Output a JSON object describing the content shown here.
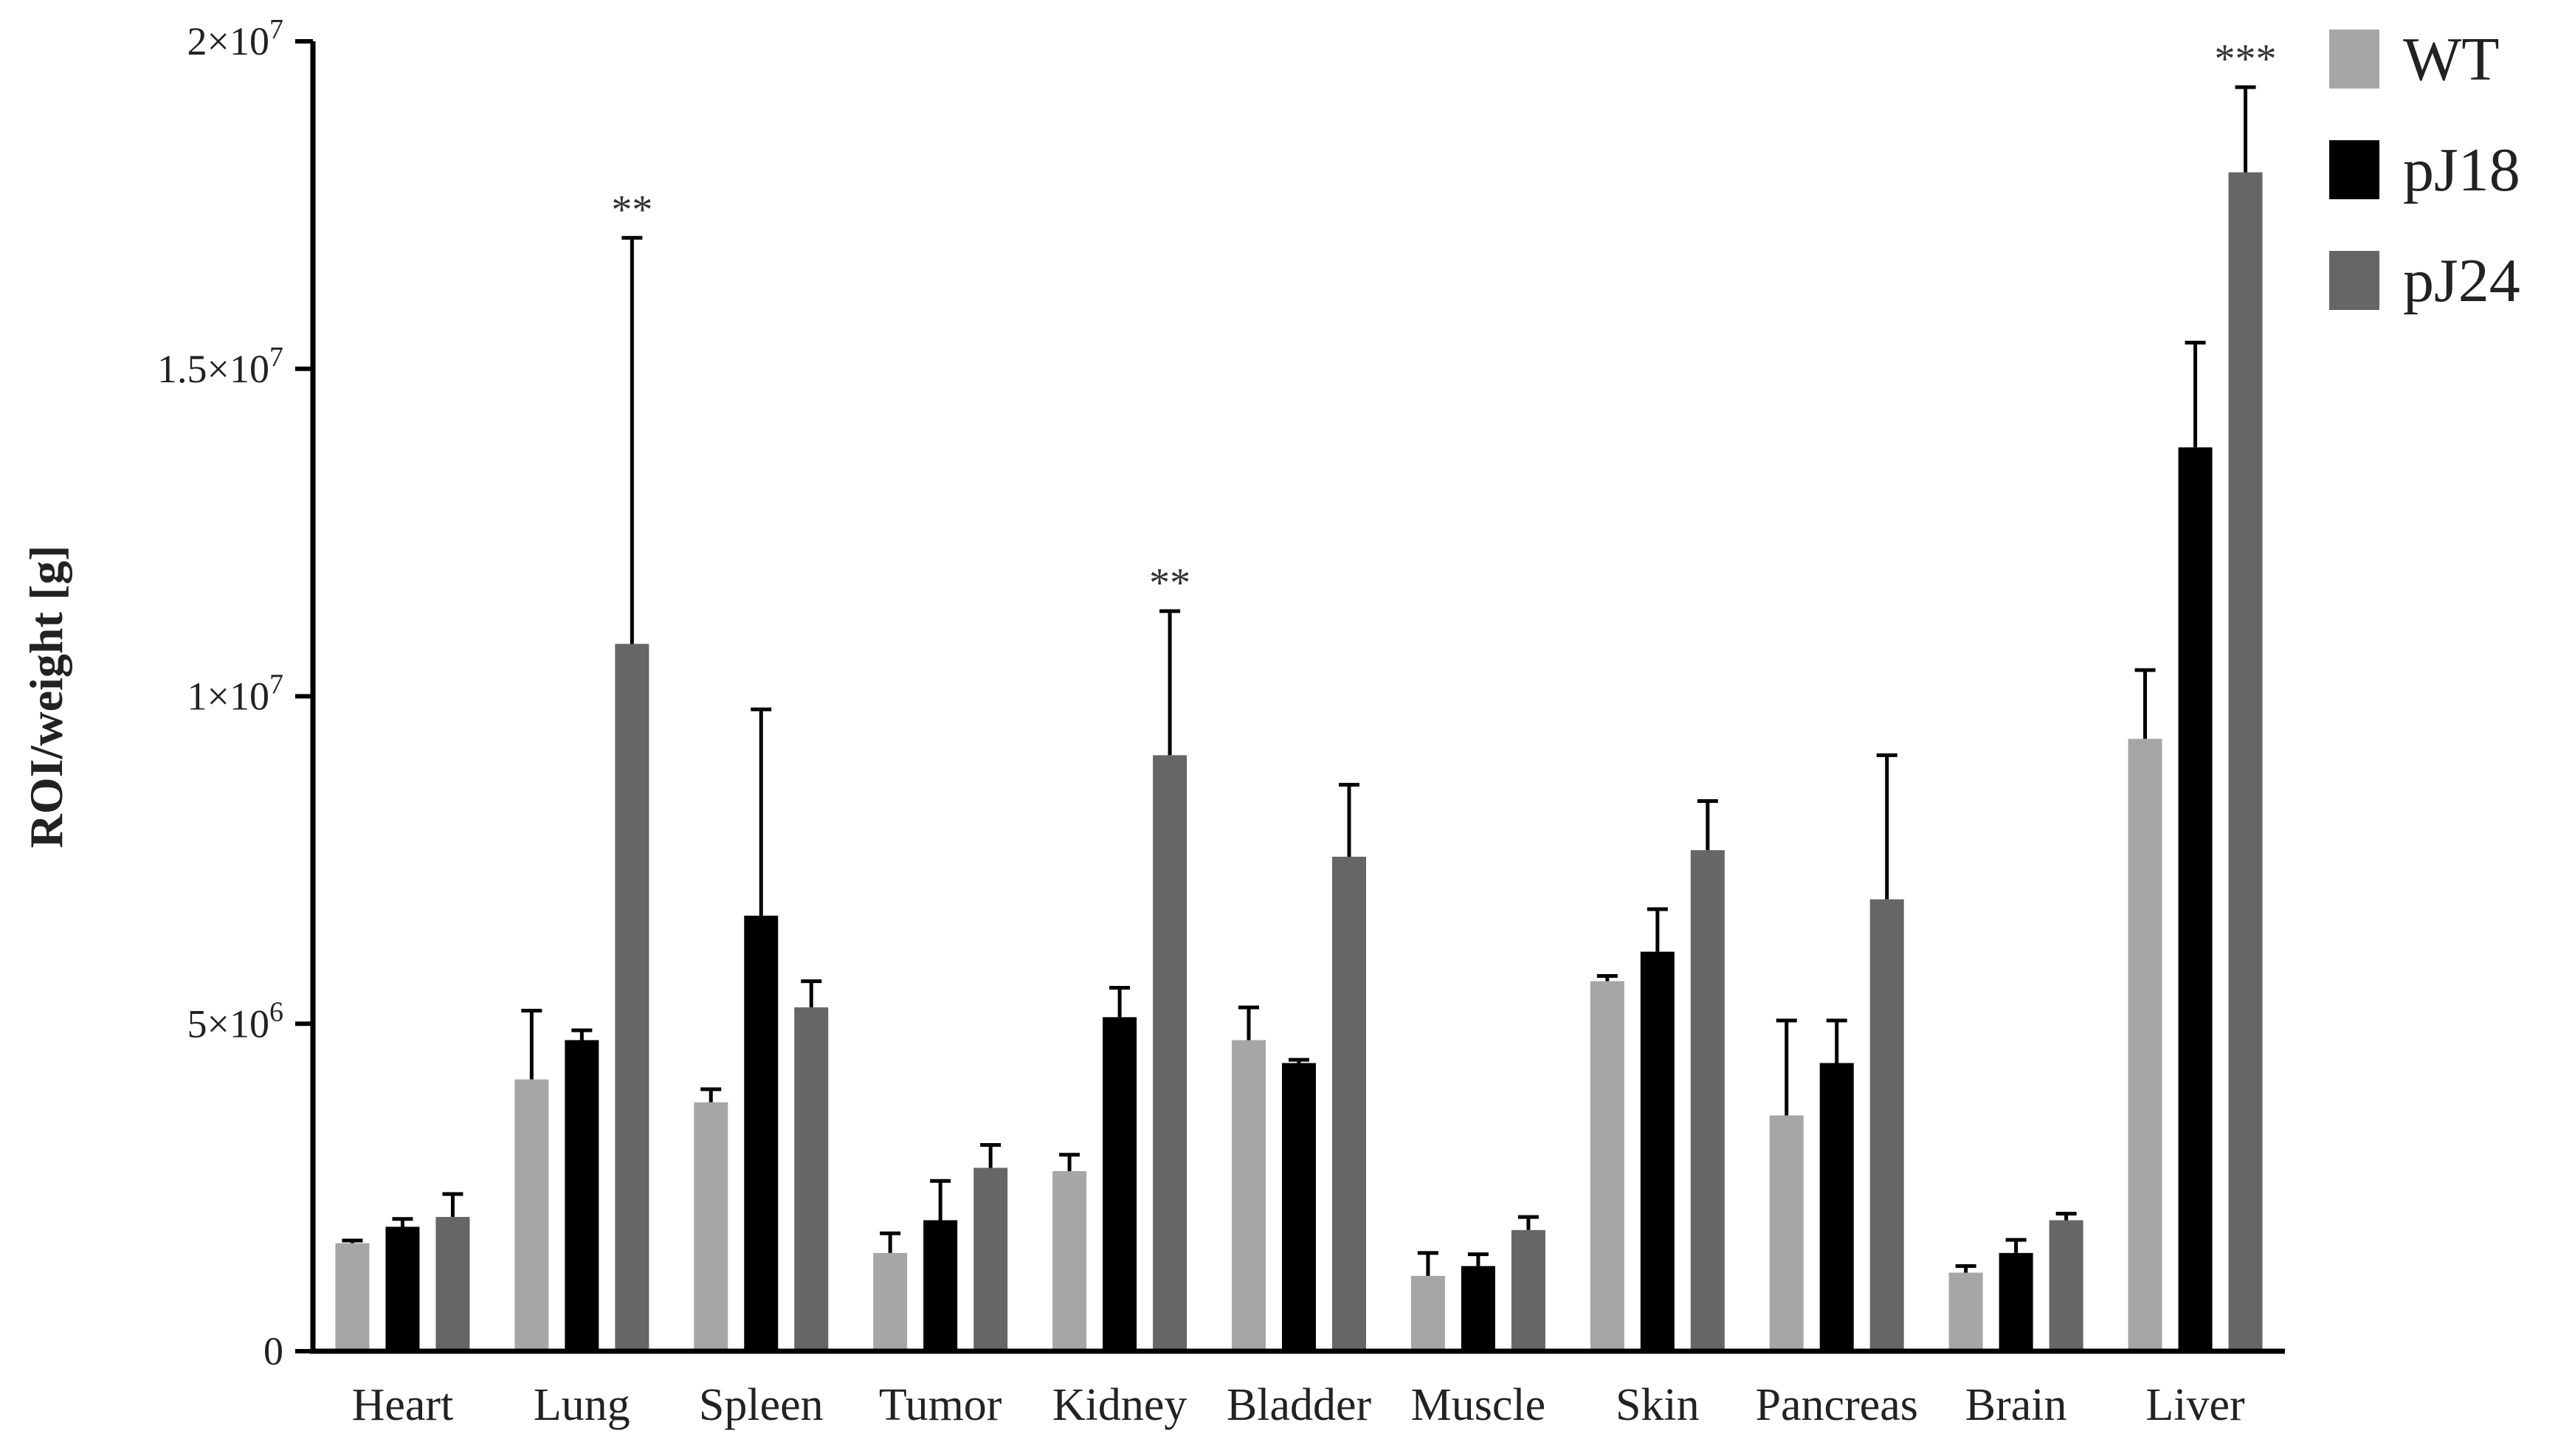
{
  "chart_data": {
    "type": "bar",
    "title": "",
    "xlabel": "",
    "ylabel": "ROI/weight [g]",
    "ylim": [
      0,
      20000000
    ],
    "yticks": [
      {
        "value": 0,
        "label": "0"
      },
      {
        "value": 5000000,
        "base": "5×10",
        "exp": "6"
      },
      {
        "value": 10000000,
        "base": "1×10",
        "exp": "7"
      },
      {
        "value": 15000000,
        "base": "1.5×10",
        "exp": "7"
      },
      {
        "value": 20000000,
        "base": "2×10",
        "exp": "7"
      }
    ],
    "grid": false,
    "legend_position": "top-right",
    "categories": [
      "Heart",
      "Lung",
      "Spleen",
      "Tumor",
      "Kidney",
      "Bladder",
      "Muscle",
      "Skin",
      "Pancreas",
      "Brain",
      "Liver"
    ],
    "series": [
      {
        "name": "WT",
        "color": "#a6a6a9",
        "values": [
          1650000,
          4150000,
          3800000,
          1500000,
          2750000,
          4750000,
          1150000,
          5650000,
          3600000,
          1200000,
          9350000
        ],
        "errors": [
          40000,
          1050000,
          200000,
          300000,
          250000,
          500000,
          350000,
          80000,
          1450000,
          100000,
          1050000
        ]
      },
      {
        "name": "pJ18",
        "color": "#000000",
        "values": [
          1900000,
          4750000,
          6650000,
          2000000,
          5100000,
          4400000,
          1300000,
          6100000,
          4400000,
          1500000,
          13800000
        ],
        "errors": [
          120000,
          150000,
          3150000,
          600000,
          450000,
          50000,
          180000,
          650000,
          650000,
          200000,
          1600000
        ]
      },
      {
        "name": "pJ24",
        "color": "#666666",
        "values": [
          2050000,
          10800000,
          5250000,
          2800000,
          9100000,
          7550000,
          1850000,
          7650000,
          6900000,
          2000000,
          18000000
        ],
        "errors": [
          350000,
          6200000,
          400000,
          350000,
          2200000,
          1100000,
          200000,
          750000,
          2200000,
          100000,
          1300000
        ]
      }
    ],
    "annotations": [
      {
        "category": "Lung",
        "series": "pJ24",
        "text": "**"
      },
      {
        "category": "Kidney",
        "series": "pJ24",
        "text": "**"
      },
      {
        "category": "Liver",
        "series": "pJ24",
        "text": "***"
      }
    ]
  }
}
